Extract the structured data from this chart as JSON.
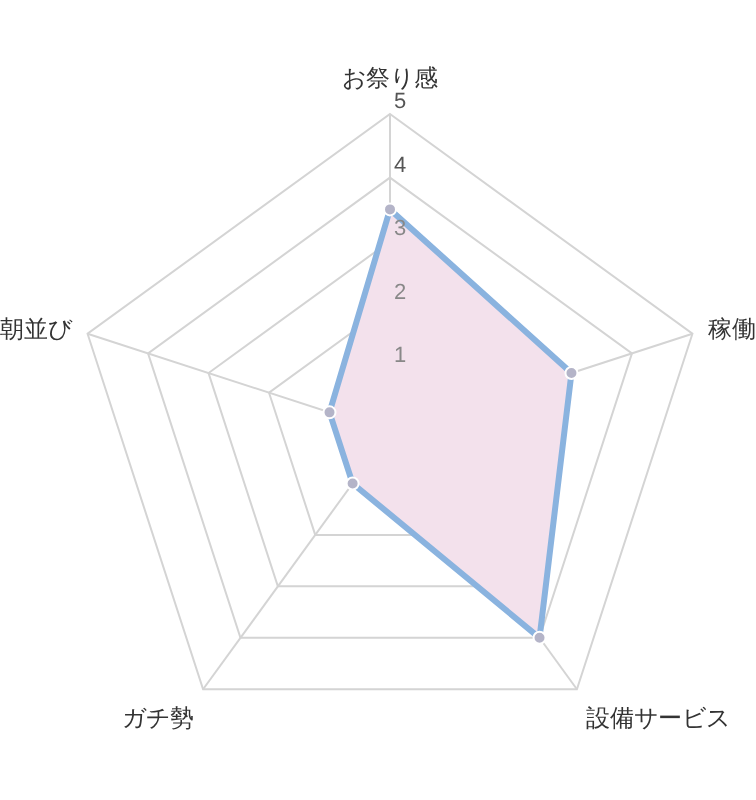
{
  "chart_data": {
    "type": "radar",
    "categories": [
      "お祭り感",
      "稼働",
      "設備サービス",
      "ガチ勢",
      "朝並び"
    ],
    "series": [
      {
        "color": "#8ab3df",
        "values": [
          3.5,
          3,
          4,
          1,
          1
        ]
      }
    ],
    "ylim": [
      0,
      5
    ],
    "yticks": [
      1,
      2,
      3,
      4,
      5
    ],
    "grid": true,
    "marker": "circle"
  }
}
